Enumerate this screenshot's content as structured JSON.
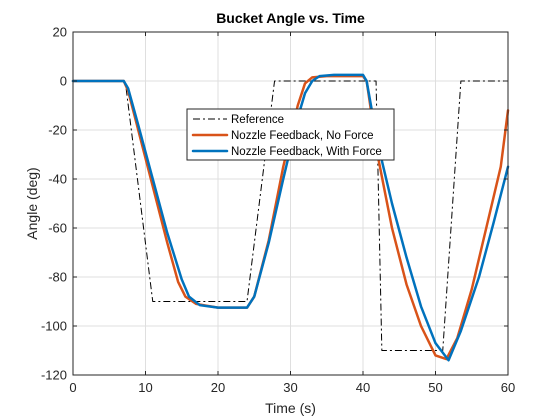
{
  "chart_data": {
    "type": "line",
    "title": "Bucket Angle vs. Time",
    "xlabel": "Time (s)",
    "ylabel": "Angle (deg)",
    "xlim": [
      0,
      60
    ],
    "ylim": [
      -120,
      20
    ],
    "xticks": [
      0,
      10,
      20,
      30,
      40,
      50,
      60
    ],
    "yticks": [
      -120,
      -100,
      -80,
      -60,
      -40,
      -20,
      0,
      20
    ],
    "grid": true,
    "legend_position": "center",
    "series": [
      {
        "name": "Reference",
        "color": "#000000",
        "style": "dashdot",
        "points": [
          [
            0,
            0
          ],
          [
            7.2,
            0
          ],
          [
            11,
            -90
          ],
          [
            24,
            -90
          ],
          [
            27.8,
            0
          ],
          [
            41.8,
            0
          ],
          [
            42.6,
            -110
          ],
          [
            51,
            -110
          ],
          [
            53.5,
            0
          ],
          [
            60,
            0
          ]
        ]
      },
      {
        "name": "Nozzle Feedback, No Force",
        "color": "#D95319",
        "style": "solid",
        "points": [
          [
            0,
            0
          ],
          [
            7,
            0
          ],
          [
            7.6,
            -4
          ],
          [
            9,
            -20
          ],
          [
            11,
            -43
          ],
          [
            13,
            -66
          ],
          [
            14.5,
            -82
          ],
          [
            15.5,
            -88
          ],
          [
            17,
            -91
          ],
          [
            20,
            -92.5
          ],
          [
            24,
            -92.5
          ],
          [
            25,
            -88
          ],
          [
            27,
            -65
          ],
          [
            29,
            -35
          ],
          [
            31,
            -10
          ],
          [
            32,
            -1
          ],
          [
            33,
            1.5
          ],
          [
            35,
            2
          ],
          [
            40,
            2
          ],
          [
            40.5,
            0
          ],
          [
            42,
            -30
          ],
          [
            44,
            -60
          ],
          [
            46,
            -83
          ],
          [
            48,
            -100
          ],
          [
            50,
            -112
          ],
          [
            51.5,
            -113.5
          ],
          [
            53,
            -105
          ],
          [
            55,
            -85
          ],
          [
            57,
            -60
          ],
          [
            59,
            -35
          ],
          [
            60,
            -12
          ]
        ]
      },
      {
        "name": "Nozzle Feedback, With Force",
        "color": "#0072BD",
        "style": "solid",
        "points": [
          [
            0,
            0
          ],
          [
            7,
            0
          ],
          [
            7.6,
            -3
          ],
          [
            9,
            -18
          ],
          [
            11,
            -40
          ],
          [
            13,
            -62
          ],
          [
            15,
            -81
          ],
          [
            16,
            -88
          ],
          [
            17.5,
            -91.5
          ],
          [
            20,
            -92.5
          ],
          [
            24,
            -92.5
          ],
          [
            25,
            -88
          ],
          [
            27,
            -66
          ],
          [
            29,
            -40
          ],
          [
            31,
            -15
          ],
          [
            32,
            -5
          ],
          [
            33,
            0
          ],
          [
            34,
            2
          ],
          [
            36,
            2.5
          ],
          [
            40,
            2.5
          ],
          [
            40.5,
            0
          ],
          [
            42,
            -25
          ],
          [
            44,
            -50
          ],
          [
            46,
            -72
          ],
          [
            48,
            -92
          ],
          [
            50,
            -107
          ],
          [
            51.8,
            -114
          ],
          [
            53.5,
            -102
          ],
          [
            56,
            -80
          ],
          [
            58,
            -58
          ],
          [
            60,
            -35
          ]
        ]
      }
    ]
  }
}
